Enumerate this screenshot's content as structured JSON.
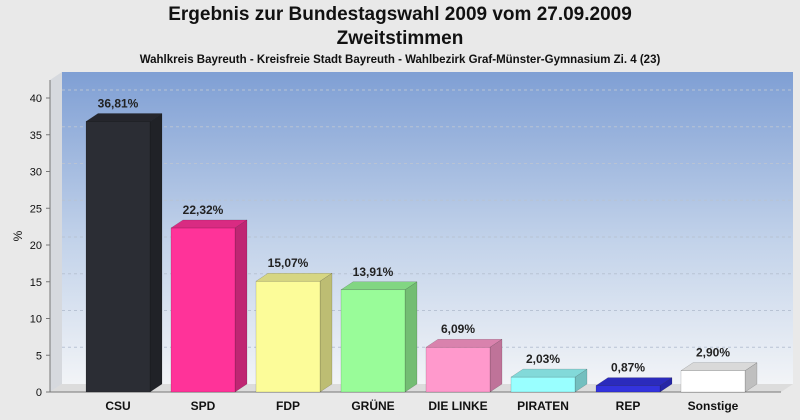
{
  "chart_data": {
    "type": "bar",
    "title": "Ergebnis zur Bundestagswahl 2009 vom 27.09.2009",
    "title2": "Zweitstimmen",
    "subtitle": "Wahlkreis Bayreuth - Kreisfreie Stadt Bayreuth - Wahlbezirk Graf-Münster-Gymnasium Zi. 4 (23)",
    "ylabel": "%",
    "ylim": [
      0,
      40
    ],
    "yticks": [
      "0",
      "5",
      "10",
      "15",
      "20",
      "25",
      "30",
      "35",
      "40"
    ],
    "categories": [
      "CSU",
      "SPD",
      "FDP",
      "GRÜNE",
      "DIE LINKE",
      "PIRATEN",
      "REP",
      "Sonstige"
    ],
    "values": [
      36.81,
      22.32,
      15.07,
      13.91,
      6.09,
      2.03,
      0.87,
      2.9
    ],
    "value_labels": [
      "36,81%",
      "22,32%",
      "15,07%",
      "13,91%",
      "6,09%",
      "2,03%",
      "0,87%",
      "2,90%"
    ],
    "colors": [
      "#2b2d34",
      "#ff3399",
      "#fcfc99",
      "#99fc99",
      "#ff99cc",
      "#99ffff",
      "#3333dd",
      "#ffffff"
    ],
    "grid": true
  }
}
